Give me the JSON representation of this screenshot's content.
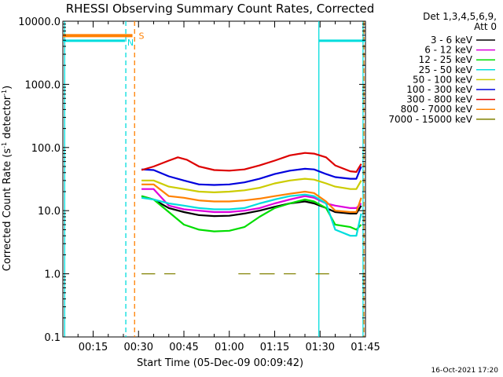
{
  "chart_data": {
    "type": "line",
    "title": "RHESSI Observing Summary Count Rates, Corrected",
    "xlabel": "Start Time (05-Dec-09 00:09:42)",
    "ylabel_main": "Corrected Count Rate (s",
    "ylabel_sup": "-1",
    "ylabel_tail": " detector",
    "ylabel_close": ")",
    "y_scale": "log",
    "ylim": [
      0.1,
      10000
    ],
    "xlim_minutes": [
      5,
      105
    ],
    "x_ticks": [
      {
        "m": 15,
        "label": "00:15"
      },
      {
        "m": 30,
        "label": "00:30"
      },
      {
        "m": 45,
        "label": "00:45"
      },
      {
        "m": 60,
        "label": "01:00"
      },
      {
        "m": 75,
        "label": "01:15"
      },
      {
        "m": 90,
        "label": "01:30"
      },
      {
        "m": 105,
        "label": "01:45"
      }
    ],
    "y_ticks": [
      {
        "v": 10000,
        "label": "10000.0"
      },
      {
        "v": 1000,
        "label": "1000.0"
      },
      {
        "v": 100,
        "label": "100.0"
      },
      {
        "v": 10,
        "label": "10.0"
      },
      {
        "v": 1,
        "label": "1.0"
      },
      {
        "v": 0.1,
        "label": "0.1"
      }
    ],
    "legend_header": [
      "Det 1,3,4,5,6,9,",
      "Att 0"
    ],
    "legend_position": "right",
    "series": [
      {
        "name": "3 - 6 keV",
        "color": "#000000",
        "points": [
          [
            31,
            17
          ],
          [
            35,
            15
          ],
          [
            40,
            11
          ],
          [
            45,
            9.5
          ],
          [
            50,
            8.5
          ],
          [
            55,
            8.2
          ],
          [
            60,
            8.3
          ],
          [
            65,
            9
          ],
          [
            70,
            10
          ],
          [
            75,
            11.5
          ],
          [
            80,
            13
          ],
          [
            85,
            14
          ],
          [
            88,
            13
          ],
          [
            92,
            11
          ],
          [
            95,
            9.5
          ],
          [
            100,
            9
          ],
          [
            102,
            9
          ],
          [
            103.6,
            12
          ]
        ]
      },
      {
        "name": "6 - 12 keV",
        "color": "#dd00dd",
        "points": [
          [
            31,
            22
          ],
          [
            35,
            22
          ],
          [
            40,
            12
          ],
          [
            45,
            10.5
          ],
          [
            50,
            10
          ],
          [
            55,
            9.5
          ],
          [
            60,
            9.5
          ],
          [
            65,
            10
          ],
          [
            70,
            11
          ],
          [
            75,
            13
          ],
          [
            80,
            15
          ],
          [
            85,
            17
          ],
          [
            88,
            16
          ],
          [
            92,
            13
          ],
          [
            95,
            12
          ],
          [
            100,
            11
          ],
          [
            102,
            11
          ],
          [
            103.6,
            13
          ]
        ]
      },
      {
        "name": "12 - 25 keV",
        "color": "#00dd00",
        "points": [
          [
            31,
            17
          ],
          [
            35,
            15
          ],
          [
            40,
            9.5
          ],
          [
            45,
            6
          ],
          [
            50,
            5
          ],
          [
            55,
            4.7
          ],
          [
            60,
            4.8
          ],
          [
            65,
            5.5
          ],
          [
            70,
            8
          ],
          [
            75,
            11
          ],
          [
            80,
            13
          ],
          [
            85,
            15
          ],
          [
            88,
            14
          ],
          [
            92,
            11
          ],
          [
            95,
            6
          ],
          [
            100,
            5.5
          ],
          [
            102,
            5
          ],
          [
            103.6,
            6
          ]
        ]
      },
      {
        "name": "25 - 50 keV",
        "color": "#00dddd",
        "points": [
          [
            31,
            16
          ],
          [
            35,
            15
          ],
          [
            40,
            13
          ],
          [
            45,
            12
          ],
          [
            50,
            11
          ],
          [
            55,
            10.5
          ],
          [
            60,
            10.5
          ],
          [
            65,
            11
          ],
          [
            70,
            13
          ],
          [
            75,
            15
          ],
          [
            80,
            17
          ],
          [
            85,
            18
          ],
          [
            88,
            17
          ],
          [
            92,
            13
          ],
          [
            95,
            5
          ],
          [
            100,
            4
          ],
          [
            102,
            4
          ],
          [
            103.6,
            9
          ]
        ]
      },
      {
        "name": "50 - 100 keV",
        "color": "#cccc00",
        "points": [
          [
            31,
            30
          ],
          [
            35,
            30
          ],
          [
            40,
            24
          ],
          [
            45,
            22
          ],
          [
            50,
            20
          ],
          [
            55,
            19.5
          ],
          [
            60,
            20
          ],
          [
            65,
            21
          ],
          [
            70,
            23
          ],
          [
            75,
            27
          ],
          [
            80,
            30
          ],
          [
            85,
            32
          ],
          [
            88,
            31
          ],
          [
            92,
            27
          ],
          [
            95,
            24
          ],
          [
            100,
            22
          ],
          [
            102,
            22
          ],
          [
            103.6,
            30
          ]
        ]
      },
      {
        "name": "100 - 300 keV",
        "color": "#0000dd",
        "points": [
          [
            31,
            45
          ],
          [
            35,
            44
          ],
          [
            40,
            35
          ],
          [
            45,
            30
          ],
          [
            50,
            26
          ],
          [
            55,
            25.5
          ],
          [
            60,
            26
          ],
          [
            65,
            28
          ],
          [
            70,
            32
          ],
          [
            75,
            38
          ],
          [
            80,
            43
          ],
          [
            85,
            46
          ],
          [
            88,
            45
          ],
          [
            92,
            38
          ],
          [
            95,
            34
          ],
          [
            100,
            32
          ],
          [
            102,
            32
          ],
          [
            103.6,
            50
          ]
        ]
      },
      {
        "name": "300 - 800 keV",
        "color": "#dd0000",
        "points": [
          [
            31,
            44
          ],
          [
            35,
            50
          ],
          [
            40,
            62
          ],
          [
            43,
            70
          ],
          [
            46,
            64
          ],
          [
            50,
            50
          ],
          [
            55,
            44
          ],
          [
            60,
            43
          ],
          [
            65,
            45
          ],
          [
            70,
            52
          ],
          [
            75,
            62
          ],
          [
            80,
            75
          ],
          [
            85,
            82
          ],
          [
            88,
            80
          ],
          [
            92,
            70
          ],
          [
            95,
            52
          ],
          [
            100,
            42
          ],
          [
            102,
            41
          ],
          [
            103.6,
            55
          ]
        ]
      },
      {
        "name": "800 - 7000 keV",
        "color": "#ff8000",
        "points": [
          [
            31,
            26
          ],
          [
            35,
            26
          ],
          [
            40,
            17
          ],
          [
            45,
            16
          ],
          [
            50,
            14.5
          ],
          [
            55,
            14
          ],
          [
            60,
            14
          ],
          [
            65,
            14.5
          ],
          [
            70,
            15.5
          ],
          [
            75,
            17
          ],
          [
            80,
            18.5
          ],
          [
            85,
            20
          ],
          [
            88,
            19
          ],
          [
            92,
            14
          ],
          [
            95,
            10
          ],
          [
            100,
            9.5
          ],
          [
            102,
            9.5
          ],
          [
            103.6,
            16
          ]
        ]
      },
      {
        "name": "7000 - 15000 keV",
        "color": "#808000",
        "points": [
          [
            31,
            1
          ],
          [
            35.5,
            1
          ],
          [
            38.5,
            1
          ],
          [
            42.2,
            1
          ],
          [
            63,
            1
          ],
          [
            67,
            1
          ],
          [
            70,
            1
          ],
          [
            75,
            1
          ],
          [
            78,
            1
          ],
          [
            82,
            1
          ],
          [
            88.5,
            1
          ],
          [
            93,
            1
          ],
          [
            94,
            1
          ]
        ]
      }
    ],
    "markers": [
      {
        "label": "S",
        "color": "#ff8000"
      },
      {
        "label": "N",
        "color": "#00dddd"
      }
    ],
    "attenuator_state": {
      "color": "#ff8000",
      "level": 5900,
      "from": 5,
      "to": 28
    },
    "night_state": {
      "color": "#00dddd",
      "level": 4900,
      "segments": [
        [
          5,
          25.5
        ],
        [
          89.6,
          105
        ]
      ]
    },
    "vertical_lines": [
      {
        "m": 5.6,
        "color": "#00dddd",
        "dashed": false
      },
      {
        "m": 25.8,
        "color": "#00dddd",
        "dashed": true
      },
      {
        "m": 28.7,
        "color": "#ff8000",
        "dashed": true
      },
      {
        "m": 89.6,
        "color": "#00dddd",
        "dashed": false
      },
      {
        "m": 104.2,
        "color": "#00dddd",
        "dashed": false
      },
      {
        "m": 104.5,
        "color": "#ff8000",
        "dashed": true
      }
    ],
    "footer_timestamp": "16-Oct-2021 17:20"
  }
}
